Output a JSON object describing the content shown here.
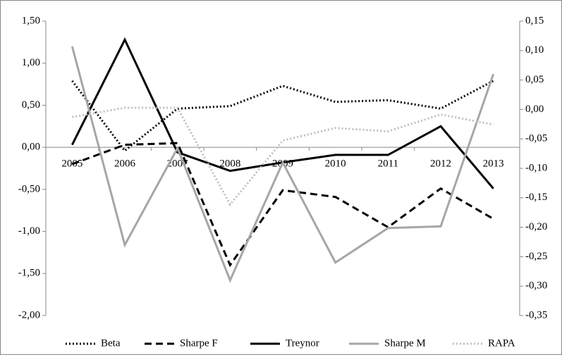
{
  "chart_data": {
    "type": "line",
    "categories": [
      "2005",
      "2006",
      "2007",
      "2008",
      "2009",
      "2010",
      "2011",
      "2012",
      "2013"
    ],
    "series": [
      {
        "name": "Beta",
        "color": "#000000",
        "dash": "dotted",
        "values": [
          0.79,
          -0.04,
          0.46,
          0.49,
          0.73,
          0.54,
          0.56,
          0.46,
          0.79
        ]
      },
      {
        "name": "Sharpe F",
        "color": "#000000",
        "dash": "dashed",
        "values": [
          -0.2,
          0.03,
          0.05,
          -1.4,
          -0.51,
          -0.59,
          -0.95,
          -0.49,
          -0.85
        ]
      },
      {
        "name": "Treynor",
        "color": "#000000",
        "dash": "solid",
        "values": [
          0.03,
          1.28,
          -0.06,
          -0.28,
          -0.18,
          -0.09,
          -0.09,
          0.25,
          -0.49
        ]
      },
      {
        "name": "Sharpe M",
        "color": "#a6a6a6",
        "dash": "solid",
        "values": [
          1.2,
          -1.16,
          -0.01,
          -1.58,
          -0.18,
          -1.37,
          -0.96,
          -0.94,
          0.87
        ]
      },
      {
        "name": "RAPA",
        "color": "#bfbfbf",
        "dash": "dotted",
        "values": [
          0.36,
          0.47,
          0.47,
          -0.68,
          0.08,
          0.23,
          0.19,
          0.39,
          0.27
        ]
      }
    ],
    "ylim": [
      -2,
      1.5
    ],
    "yticks": [
      {
        "value": -2,
        "label": "-2,00"
      },
      {
        "value": -1.5,
        "label": "-1,50"
      },
      {
        "value": -1,
        "label": "-1,00"
      },
      {
        "value": -0.5,
        "label": "-0,50"
      },
      {
        "value": 0,
        "label": "0,00"
      },
      {
        "value": 0.5,
        "label": "0,50"
      },
      {
        "value": 1,
        "label": "1,00"
      },
      {
        "value": 1.5,
        "label": "1,50"
      }
    ],
    "y2lim": [
      -0.35,
      0.15
    ],
    "y2ticks": [
      {
        "value": -0.35,
        "label": "-0,35"
      },
      {
        "value": -0.3,
        "label": "-0,30"
      },
      {
        "value": -0.25,
        "label": "-0,25"
      },
      {
        "value": -0.2,
        "label": "-0,20"
      },
      {
        "value": -0.15,
        "label": "-0,15"
      },
      {
        "value": -0.1,
        "label": "-0,10"
      },
      {
        "value": -0.05,
        "label": "-0,05"
      },
      {
        "value": 0,
        "label": "0,00"
      },
      {
        "value": 0.05,
        "label": "0,05"
      },
      {
        "value": 0.1,
        "label": "0,10"
      },
      {
        "value": 0.15,
        "label": "0,15"
      }
    ],
    "legend": "bottom"
  }
}
